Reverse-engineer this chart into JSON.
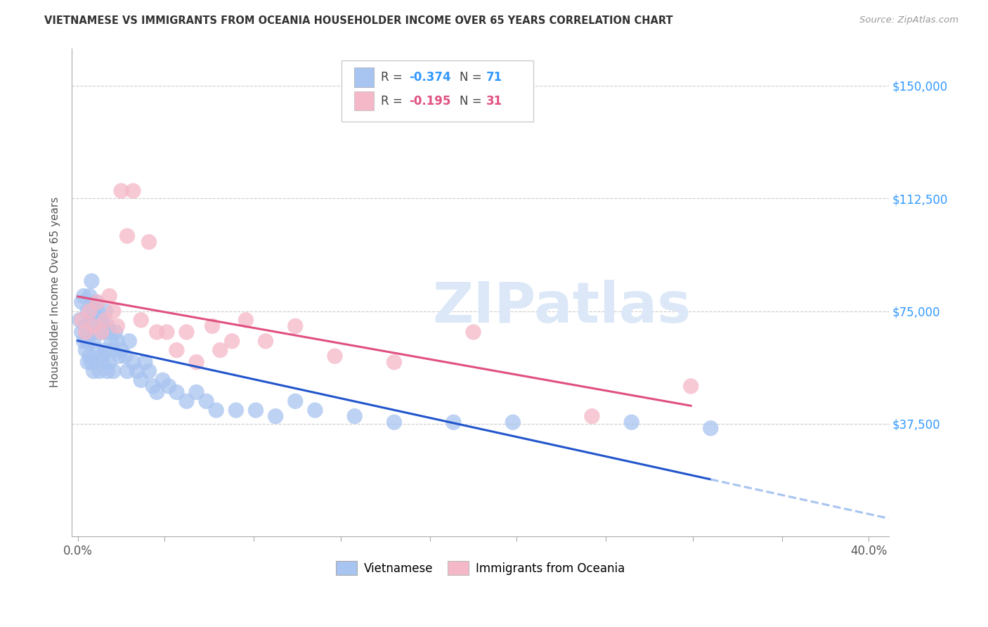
{
  "title": "VIETNAMESE VS IMMIGRANTS FROM OCEANIA HOUSEHOLDER INCOME OVER 65 YEARS CORRELATION CHART",
  "source": "Source: ZipAtlas.com",
  "xlabel_ticks": [
    "0.0%",
    "",
    "",
    "",
    "",
    "",
    "",
    "",
    "",
    "40.0%"
  ],
  "xlabel_tick_vals": [
    0.0,
    0.044,
    0.089,
    0.133,
    0.178,
    0.222,
    0.267,
    0.311,
    0.356,
    0.4
  ],
  "ylabel_ticks": [
    "$37,500",
    "$75,000",
    "$112,500",
    "$150,000"
  ],
  "ylabel_tick_vals": [
    37500,
    75000,
    112500,
    150000
  ],
  "ylim": [
    0,
    162500
  ],
  "xlim": [
    -0.003,
    0.41
  ],
  "legend_label1": "Vietnamese",
  "legend_label2": "Immigrants from Oceania",
  "r1": "-0.374",
  "n1": "71",
  "r2": "-0.195",
  "n2": "31",
  "color_blue": "#a8c4f0",
  "color_pink": "#f5b8c8",
  "line_blue": "#2255cc",
  "line_pink": "#e05080",
  "background": "#ffffff",
  "blue_x": [
    0.001,
    0.002,
    0.002,
    0.003,
    0.003,
    0.004,
    0.004,
    0.005,
    0.005,
    0.005,
    0.006,
    0.006,
    0.006,
    0.007,
    0.007,
    0.007,
    0.008,
    0.008,
    0.008,
    0.009,
    0.009,
    0.01,
    0.01,
    0.01,
    0.011,
    0.011,
    0.012,
    0.012,
    0.013,
    0.013,
    0.014,
    0.014,
    0.015,
    0.015,
    0.016,
    0.016,
    0.017,
    0.018,
    0.018,
    0.019,
    0.02,
    0.021,
    0.022,
    0.024,
    0.025,
    0.026,
    0.028,
    0.03,
    0.032,
    0.034,
    0.036,
    0.038,
    0.04,
    0.043,
    0.046,
    0.05,
    0.055,
    0.06,
    0.065,
    0.07,
    0.08,
    0.09,
    0.1,
    0.11,
    0.12,
    0.14,
    0.16,
    0.19,
    0.22,
    0.28,
    0.32
  ],
  "blue_y": [
    72000,
    68000,
    78000,
    65000,
    80000,
    70000,
    62000,
    75000,
    65000,
    58000,
    80000,
    70000,
    60000,
    85000,
    72000,
    58000,
    75000,
    65000,
    55000,
    78000,
    68000,
    75000,
    62000,
    72000,
    68000,
    55000,
    72000,
    60000,
    68000,
    58000,
    75000,
    62000,
    70000,
    55000,
    68000,
    58000,
    65000,
    62000,
    55000,
    68000,
    65000,
    60000,
    62000,
    60000,
    55000,
    65000,
    58000,
    55000,
    52000,
    58000,
    55000,
    50000,
    48000,
    52000,
    50000,
    48000,
    45000,
    48000,
    45000,
    42000,
    42000,
    42000,
    40000,
    45000,
    42000,
    40000,
    38000,
    38000,
    38000,
    38000,
    36000
  ],
  "pink_x": [
    0.002,
    0.004,
    0.006,
    0.008,
    0.01,
    0.012,
    0.014,
    0.016,
    0.018,
    0.02,
    0.022,
    0.025,
    0.028,
    0.032,
    0.036,
    0.04,
    0.045,
    0.05,
    0.055,
    0.06,
    0.068,
    0.072,
    0.078,
    0.085,
    0.095,
    0.11,
    0.13,
    0.16,
    0.2,
    0.26,
    0.31
  ],
  "pink_y": [
    72000,
    68000,
    75000,
    70000,
    78000,
    68000,
    72000,
    80000,
    75000,
    70000,
    115000,
    100000,
    115000,
    72000,
    98000,
    68000,
    68000,
    62000,
    68000,
    58000,
    70000,
    62000,
    65000,
    72000,
    65000,
    70000,
    60000,
    58000,
    68000,
    40000,
    50000
  ]
}
